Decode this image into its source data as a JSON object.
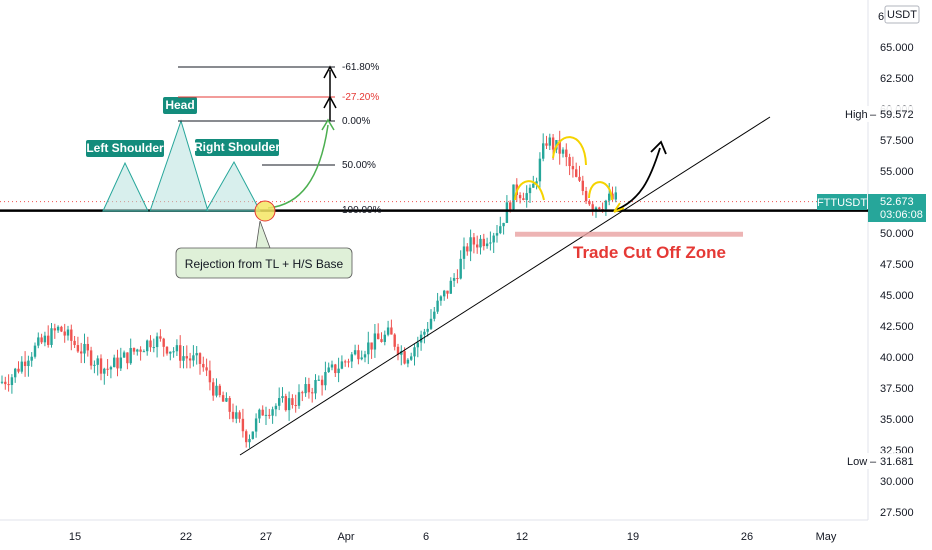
{
  "symbol": "FTTUSDT",
  "currency": "USDT",
  "last_price": "52.673",
  "countdown": "03:06:08",
  "high_label": "High",
  "high_value": "59.572",
  "low_label": "Low",
  "low_value": "31.681",
  "colors": {
    "up": "#26a69a",
    "down": "#ef5350",
    "trendline": "#000000",
    "support": "#000000",
    "zone": "#e8a1a1",
    "shoulder_fill": "#b2dfdb",
    "label_bg": "#138c7c",
    "annotation": "#f5d300",
    "fib_red": "#e53935",
    "arrow_green": "#4caf50"
  },
  "annotations": {
    "head": "Head",
    "left_shoulder": "Left Shoulder",
    "right_shoulder": "Right Shoulder",
    "callout": "Rejection from TL + H/S Base",
    "zone": "Trade Cut Off Zone"
  },
  "fib_levels": [
    {
      "label": "-61.80%",
      "color": "#131722"
    },
    {
      "label": "-27.20%",
      "color": "#e53935"
    },
    {
      "label": "0.00%",
      "color": "#131722"
    },
    {
      "label": "50.00%",
      "color": "#131722"
    },
    {
      "label": "100.00%",
      "color": "#131722"
    }
  ],
  "chart_data": {
    "type": "candlestick",
    "y_axis": {
      "range": [
        26.5,
        66.5
      ],
      "ticks": [
        "27.500",
        "30.000",
        "32.500",
        "35.000",
        "37.500",
        "40.000",
        "42.500",
        "45.000",
        "47.500",
        "50.000",
        "52.500",
        "55.000",
        "57.500",
        "60.000",
        "62.500",
        "65.000"
      ],
      "top_partial": "6"
    },
    "x_axis": {
      "ticks": [
        "15",
        "22",
        "27",
        "Apr",
        "6",
        "12",
        "19",
        "26",
        "May"
      ]
    },
    "support_level": 51.8,
    "trade_cut_off_zone": [
      49.7,
      50.1
    ],
    "price_points": [
      {
        "date": "2021-03-09",
        "value": 37.0
      },
      {
        "date": "2021-03-11",
        "value": 38.5
      },
      {
        "date": "2021-03-12",
        "value": 40.2
      },
      {
        "date": "2021-03-14",
        "value": 42.3
      },
      {
        "date": "2021-03-15",
        "value": 41.0
      },
      {
        "date": "2021-03-17",
        "value": 39.0
      },
      {
        "date": "2021-03-18",
        "value": 39.8
      },
      {
        "date": "2021-03-20",
        "value": 41.5
      },
      {
        "date": "2021-03-22",
        "value": 40.0
      },
      {
        "date": "2021-03-23",
        "value": 39.5
      },
      {
        "date": "2021-03-24",
        "value": 37.0
      },
      {
        "date": "2021-03-25",
        "value": 35.5
      },
      {
        "date": "2021-03-26",
        "value": 33.5
      },
      {
        "date": "2021-03-27",
        "value": 35.8
      },
      {
        "date": "2021-03-29",
        "value": 36.5
      },
      {
        "date": "2021-03-31",
        "value": 38.5
      },
      {
        "date": "2021-04-02",
        "value": 40.5
      },
      {
        "date": "2021-04-04",
        "value": 41.8
      },
      {
        "date": "2021-04-05",
        "value": 40.0
      },
      {
        "date": "2021-04-06",
        "value": 41.5
      },
      {
        "date": "2021-04-07",
        "value": 44.0
      },
      {
        "date": "2021-04-08",
        "value": 46.0
      },
      {
        "date": "2021-04-09",
        "value": 49.0
      },
      {
        "date": "2021-04-10",
        "value": 49.5
      },
      {
        "date": "2021-04-11",
        "value": 50.5
      },
      {
        "date": "2021-04-12",
        "value": 53.5
      },
      {
        "date": "2021-04-13",
        "value": 53.0
      },
      {
        "date": "2021-04-14",
        "value": 57.5
      },
      {
        "date": "2021-04-15",
        "value": 56.5
      },
      {
        "date": "2021-04-16",
        "value": 54.0
      },
      {
        "date": "2021-04-17",
        "value": 52.2
      },
      {
        "date": "2021-04-18",
        "value": 52.7
      }
    ]
  }
}
